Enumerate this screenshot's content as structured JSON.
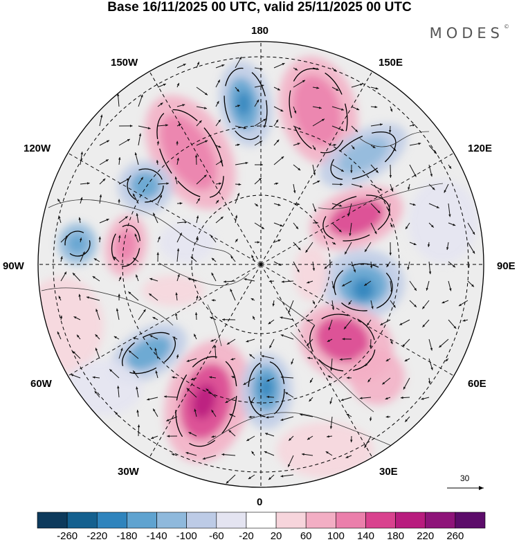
{
  "title": "Base 16/11/2025 00 UTC, valid 25/11/2025 00 UTC",
  "brand": "MODES",
  "brand_mark": "©",
  "longitude_labels": {
    "lon_180": "180",
    "lon_150e": "150E",
    "lon_120e": "120E",
    "lon_90e": "90E",
    "lon_60e": "60E",
    "lon_30e": "30E",
    "lon_0": "0",
    "lon_30w": "30W",
    "lon_60w": "60W",
    "lon_90w": "90W",
    "lon_120w": "120W",
    "lon_150w": "150W"
  },
  "reference_vector": {
    "value": "30"
  },
  "colorbar": {
    "ticks": [
      "-260",
      "-220",
      "-180",
      "-140",
      "-100",
      "-60",
      "-20",
      "20",
      "60",
      "100",
      "140",
      "180",
      "220",
      "260"
    ],
    "colors": [
      "#0d3a5c",
      "#14608f",
      "#2f84bd",
      "#5fa3d0",
      "#8fb9dc",
      "#bdcbe6",
      "#e4e4f1",
      "#ffffff",
      "#f7d5dc",
      "#f3aec4",
      "#eb7fab",
      "#d9428e",
      "#b81c7e",
      "#8e1479",
      "#5c0c6a"
    ]
  }
}
